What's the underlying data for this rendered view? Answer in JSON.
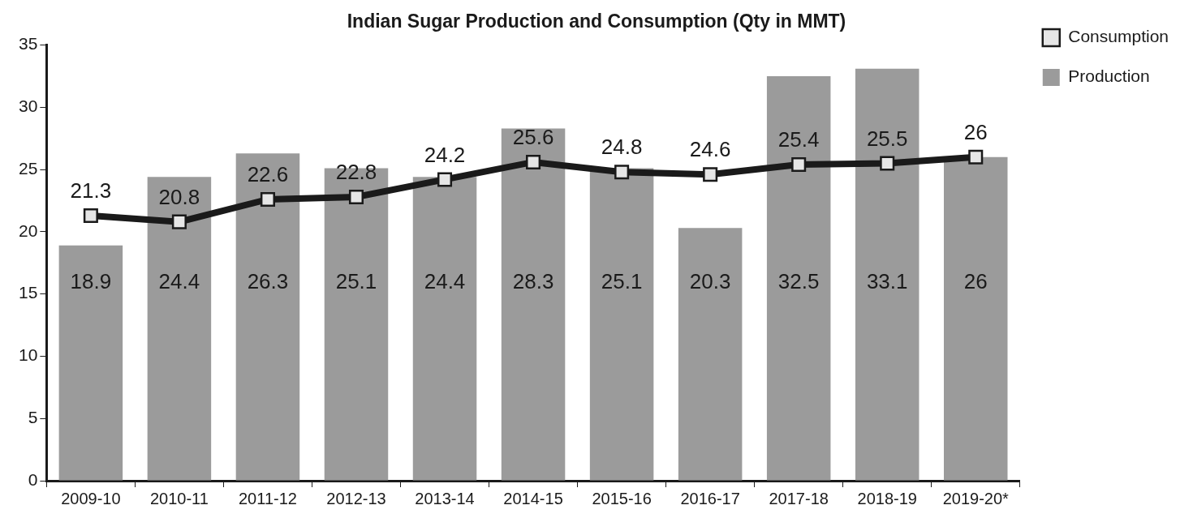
{
  "chart_data": {
    "type": "bar",
    "title": "Indian Sugar Production and Consumption (Qty in MMT)",
    "categories": [
      "2009-10",
      "2010-11",
      "2011-12",
      "2012-13",
      "2013-14",
      "2014-15",
      "2015-16",
      "2016-17",
      "2017-18",
      "2018-19",
      "2019-20*"
    ],
    "series": [
      {
        "name": "Consumption",
        "type": "line",
        "color": "#1a1a1a",
        "marker": "square",
        "values": [
          21.3,
          20.8,
          22.6,
          22.8,
          24.2,
          25.6,
          24.8,
          24.6,
          25.4,
          25.5,
          26
        ]
      },
      {
        "name": "Production",
        "type": "bar",
        "color": "#9b9b9b",
        "values": [
          18.9,
          24.4,
          26.3,
          25.1,
          24.4,
          28.3,
          25.1,
          20.3,
          32.5,
          33.1,
          26
        ]
      }
    ],
    "ylim": [
      0,
      35
    ],
    "yticks": [
      0,
      5,
      10,
      15,
      20,
      25,
      30,
      35
    ],
    "grid": false,
    "legend": "top-right",
    "data_labels": true
  }
}
